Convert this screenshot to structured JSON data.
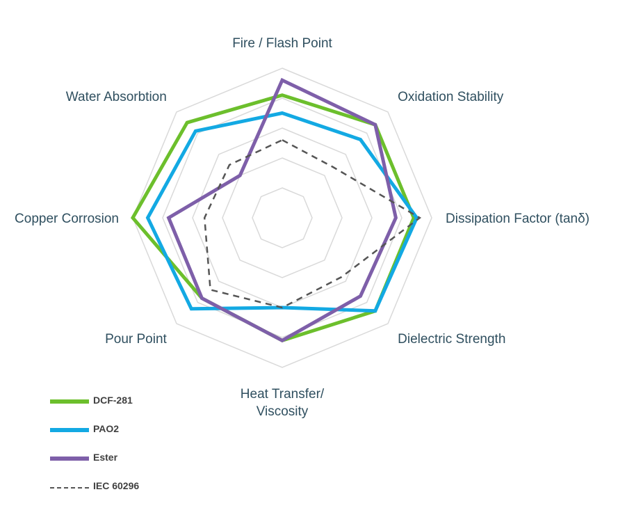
{
  "chart_data": {
    "type": "radar",
    "title": "",
    "axes": [
      [
        "Fire / Flash Point"
      ],
      [
        "Oxidation Stability"
      ],
      [
        "Dissipation Factor (tanδ)"
      ],
      [
        "Dielectric Strength"
      ],
      [
        "Heat Transfer/",
        "Viscosity"
      ],
      [
        "Pour Point"
      ],
      [
        "Copper Corrosion"
      ],
      [
        "Water Absorbtion"
      ]
    ],
    "rlim": [
      0,
      5
    ],
    "grid_rings": 5,
    "grid": true,
    "legend_position": "bottom-left",
    "series": [
      {
        "name": "DCF-281",
        "color": "#6cbf2c",
        "style": "solid",
        "values": [
          4.1,
          4.4,
          4.4,
          4.4,
          4.1,
          3.8,
          5.0,
          4.5
        ]
      },
      {
        "name": "PAO2",
        "color": "#13a9e3",
        "style": "solid",
        "values": [
          3.5,
          3.7,
          4.5,
          4.4,
          3.0,
          4.3,
          4.5,
          4.1
        ]
      },
      {
        "name": "Ester",
        "color": "#7e5fa9",
        "style": "solid",
        "values": [
          4.6,
          4.4,
          3.8,
          3.7,
          4.1,
          3.8,
          3.8,
          2.0
        ]
      },
      {
        "name": "IEC 60296",
        "color": "#555555",
        "style": "dashed",
        "values": [
          2.6,
          2.4,
          4.6,
          2.8,
          3.0,
          3.4,
          2.6,
          2.5
        ]
      }
    ]
  }
}
